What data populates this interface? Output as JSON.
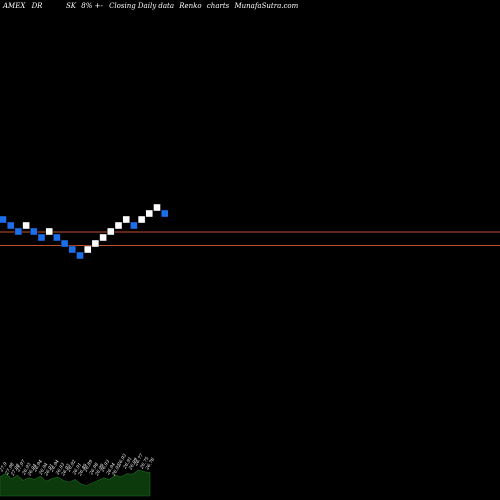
{
  "header": {
    "exchange": "AMEX",
    "symbol_part1": "DR",
    "symbol_part2": "SK",
    "change": "8%",
    "sign": "+-",
    "description": "Closing Daily data",
    "chart_kind": "Renko",
    "charts_word": "charts",
    "site": "MunafaSutra.com"
  },
  "colors": {
    "background": "#000000",
    "up_brick": "#ffffff",
    "down_brick": "#1c6fe8",
    "reference_line": "#c0502a",
    "volume_area": "#0c3a0c",
    "volume_stroke": "#1e6a1e"
  },
  "chart_data": {
    "type": "renko",
    "bricks": [
      {
        "level": 0,
        "dir": "down"
      },
      {
        "level": -1,
        "dir": "down"
      },
      {
        "level": -2,
        "dir": "down"
      },
      {
        "level": -1,
        "dir": "up"
      },
      {
        "level": -2,
        "dir": "down"
      },
      {
        "level": -3,
        "dir": "down"
      },
      {
        "level": -2,
        "dir": "up"
      },
      {
        "level": -3,
        "dir": "down"
      },
      {
        "level": -4,
        "dir": "down"
      },
      {
        "level": -5,
        "dir": "down"
      },
      {
        "level": -6,
        "dir": "down"
      },
      {
        "level": -5,
        "dir": "up"
      },
      {
        "level": -4,
        "dir": "up"
      },
      {
        "level": -3,
        "dir": "up"
      },
      {
        "level": -2,
        "dir": "up"
      },
      {
        "level": -1,
        "dir": "up"
      },
      {
        "level": 0,
        "dir": "up"
      },
      {
        "level": -1,
        "dir": "down"
      },
      {
        "level": 0,
        "dir": "up"
      },
      {
        "level": 1,
        "dir": "up"
      },
      {
        "level": 2,
        "dir": "up"
      },
      {
        "level": 1,
        "dir": "down"
      }
    ],
    "reference_lines": [
      -2,
      -4
    ],
    "price_labels": [
      "27.9",
      "27.98",
      "27.98",
      "27.97",
      "26.93",
      "26.94",
      "26.94",
      "26.94",
      "26.91",
      "26.94",
      "26.93",
      "26.93",
      "26.92",
      "26.91",
      "26.89",
      "26.89",
      "26.98",
      "26.99",
      "26.93",
      "26.94",
      "26.92",
      "26.93",
      "26.91",
      "26.99",
      "26.77",
      "26.75",
      "26.76"
    ],
    "volume": [
      22,
      26,
      20,
      24,
      18,
      21,
      19,
      23,
      17,
      20,
      22,
      18,
      16,
      19,
      14,
      12,
      15,
      18,
      21,
      19,
      24,
      22,
      26,
      25,
      30,
      28,
      27
    ]
  }
}
